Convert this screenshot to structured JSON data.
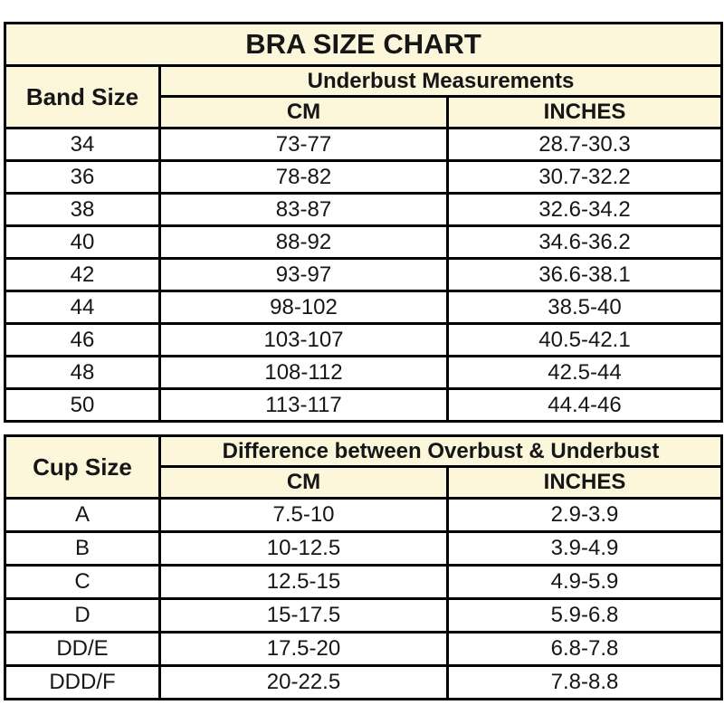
{
  "title": "BRA SIZE CHART",
  "colors": {
    "header_background": "#FCF6DA",
    "row_background": "#FFFFFF",
    "border": "#000000",
    "text": "#161616"
  },
  "chart_data": [
    {
      "type": "table",
      "title": "BRA SIZE CHART",
      "corner_header": "Band Size",
      "group_header": "Underbust Measurements",
      "columns": [
        "CM",
        "INCHES"
      ],
      "rows": [
        {
          "label": "34",
          "cm": "73-77",
          "inches": "28.7-30.3"
        },
        {
          "label": "36",
          "cm": "78-82",
          "inches": "30.7-32.2"
        },
        {
          "label": "38",
          "cm": "83-87",
          "inches": "32.6-34.2"
        },
        {
          "label": "40",
          "cm": "88-92",
          "inches": "34.6-36.2"
        },
        {
          "label": "42",
          "cm": "93-97",
          "inches": "36.6-38.1"
        },
        {
          "label": "44",
          "cm": "98-102",
          "inches": "38.5-40"
        },
        {
          "label": "46",
          "cm": "103-107",
          "inches": "40.5-42.1"
        },
        {
          "label": "48",
          "cm": "108-112",
          "inches": "42.5-44"
        },
        {
          "label": "50",
          "cm": "113-117",
          "inches": "44.4-46"
        }
      ]
    },
    {
      "type": "table",
      "corner_header": "Cup Size",
      "group_header": "Difference between Overbust & Underbust",
      "columns": [
        "CM",
        "INCHES"
      ],
      "rows": [
        {
          "label": "A",
          "cm": "7.5-10",
          "inches": "2.9-3.9"
        },
        {
          "label": "B",
          "cm": "10-12.5",
          "inches": "3.9-4.9"
        },
        {
          "label": "C",
          "cm": "12.5-15",
          "inches": "4.9-5.9"
        },
        {
          "label": "D",
          "cm": "15-17.5",
          "inches": "5.9-6.8"
        },
        {
          "label": "DD/E",
          "cm": "17.5-20",
          "inches": "6.8-7.8"
        },
        {
          "label": "DDD/F",
          "cm": "20-22.5",
          "inches": "7.8-8.8"
        }
      ]
    }
  ]
}
